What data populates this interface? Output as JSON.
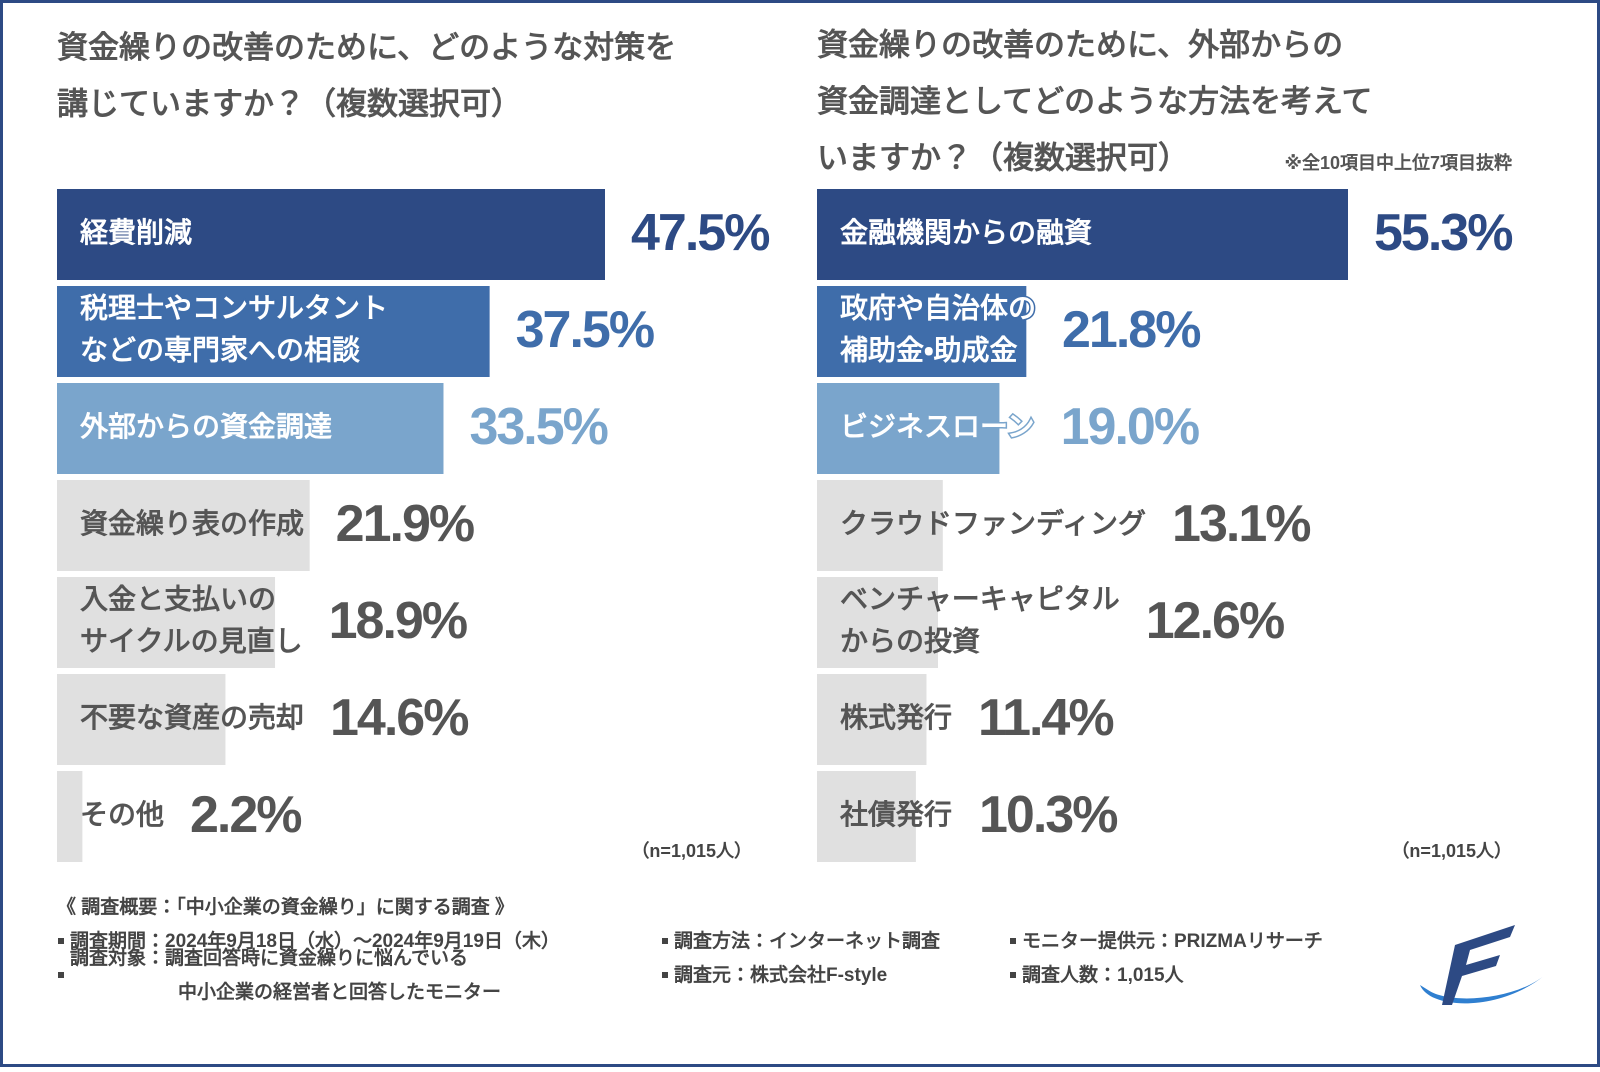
{
  "chart_data": [
    {
      "type": "bar",
      "title": "資金繰りの改善のために、どのような対策を\n講じていますか？（複数選択可）",
      "categories": [
        "経費削減",
        "税理士やコンサルタント\nなどの専門家への相談",
        "外部からの資金調達",
        "資金繰り表の作成",
        "入金と支払いの\nサイクルの見直し",
        "不要な資産の売却",
        "その他"
      ],
      "values": [
        47.5,
        37.5,
        33.5,
        21.9,
        18.9,
        14.6,
        2.2
      ],
      "value_labels": [
        "47.5%",
        "37.5%",
        "33.5%",
        "21.9%",
        "18.9%",
        "14.6%",
        "2.2%"
      ],
      "colors": [
        "#2d4a84",
        "#3f6daa",
        "#7aa5cc",
        "#e0e0e0",
        "#e0e0e0",
        "#e0e0e0",
        "#e0e0e0"
      ],
      "label_colors": [
        "#ffffff",
        "#ffffff",
        "#ffffff",
        "#555555",
        "#555555",
        "#555555",
        "#555555"
      ],
      "value_label_colors": [
        "#2d4a84",
        "#3f6daa",
        "#7aa5cc",
        "#555555",
        "#555555",
        "#555555",
        "#555555"
      ],
      "sample_note": "（n=1,015人）"
    },
    {
      "type": "bar",
      "title": "資金繰りの改善のために、外部からの\n資金調達としてどのような方法を考えて\nいますか？（複数選択可）",
      "note": "※全10項目中上位7項目抜粋",
      "categories": [
        "金融機関からの融資",
        "政府や自治体の\n補助金・助成金",
        "ビジネスローン",
        "クラウドファンディング",
        "ベンチャーキャピタル\nからの投資",
        "株式発行",
        "社債発行"
      ],
      "values": [
        55.3,
        21.8,
        19.0,
        13.1,
        12.6,
        11.4,
        10.3
      ],
      "value_labels": [
        "55.3%",
        "21.8%",
        "19.0%",
        "13.1%",
        "12.6%",
        "11.4%",
        "10.3%"
      ],
      "colors": [
        "#2d4a84",
        "#3f6daa",
        "#7aa5cc",
        "#e0e0e0",
        "#e0e0e0",
        "#e0e0e0",
        "#e0e0e0"
      ],
      "label_colors": [
        "#ffffff",
        "#ffffff",
        "#ffffff",
        "#555555",
        "#555555",
        "#555555",
        "#555555"
      ],
      "value_label_colors": [
        "#2d4a84",
        "#3f6daa",
        "#7aa5cc",
        "#555555",
        "#555555",
        "#555555",
        "#555555"
      ],
      "sample_note": "（n=1,015人）"
    }
  ],
  "footer": {
    "heading": "《 調査概要：「中小企業の資金繰り」に関する調査 》",
    "items": [
      "調査期間：2024年9月18日（水）～2024年9月19日（木）",
      "調査方法：インターネット調査",
      "モニター提供元：PRIZMAリサーチ",
      "調査対象：調査回答時に資金繰りに悩んでいる\n中小企業の経営者と回答したモニター",
      "調査元：株式会社F-style",
      "調査人数：1,015人"
    ]
  }
}
